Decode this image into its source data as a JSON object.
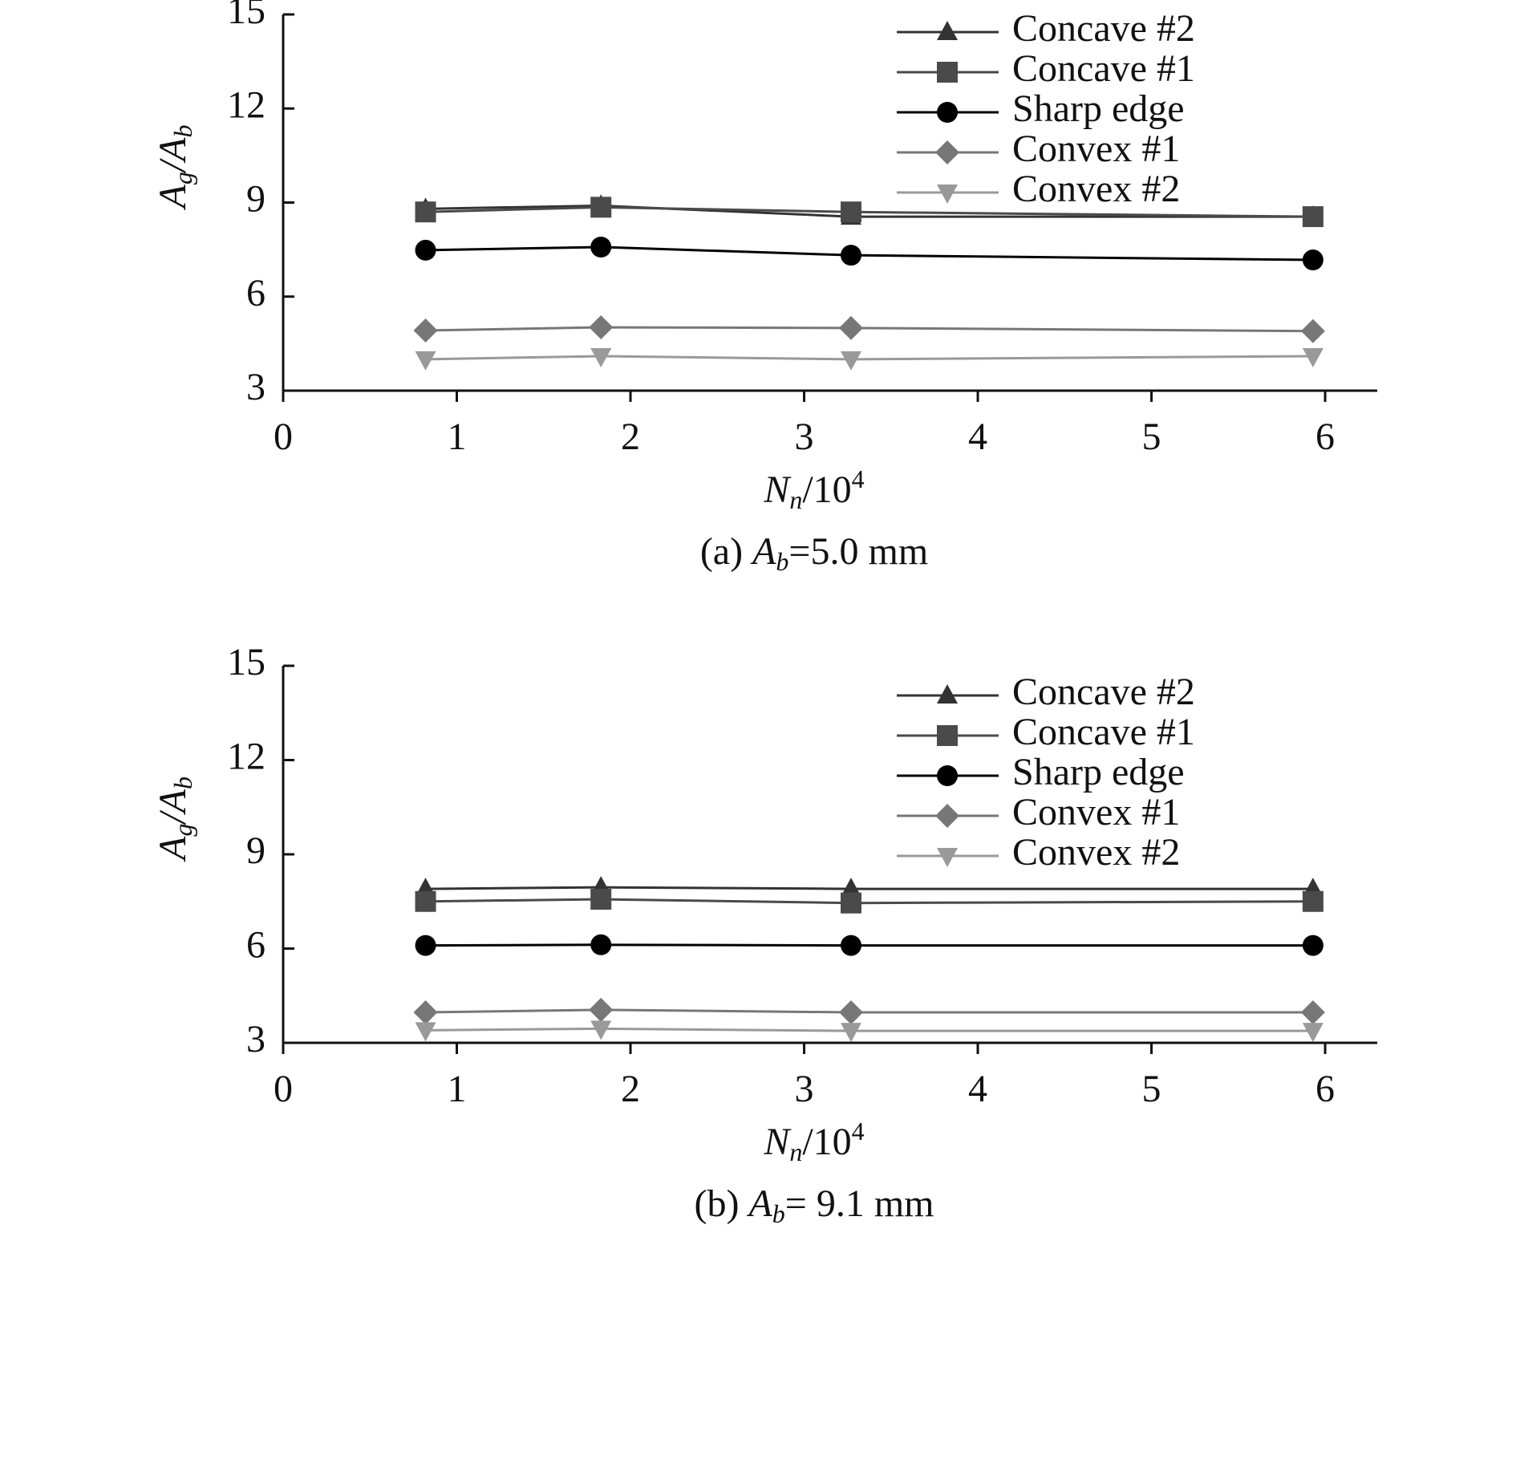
{
  "chart_data": [
    {
      "type": "line",
      "y_label": [
        "A",
        "g",
        "/A",
        "b"
      ],
      "x_label": [
        "N",
        "n",
        "/10",
        "4"
      ],
      "caption": [
        "(a) ",
        "A",
        "b",
        "=5.0 mm"
      ],
      "xlim": [
        0,
        6.3
      ],
      "xticks": [
        0,
        1,
        2,
        3,
        4,
        5,
        6
      ],
      "ylim": [
        3,
        15
      ],
      "yticks": [
        3,
        6,
        9,
        12,
        15
      ],
      "x": [
        0.82,
        1.83,
        3.27,
        5.93
      ],
      "series": [
        {
          "name": "Concave #2",
          "color": "#333333",
          "marker": "triangle-up",
          "values": [
            8.8,
            8.9,
            8.55,
            8.55
          ]
        },
        {
          "name": "Concave #1",
          "color": "#4a4a4a",
          "marker": "square",
          "values": [
            8.7,
            8.85,
            8.7,
            8.55
          ]
        },
        {
          "name": "Sharp edge",
          "color": "#000000",
          "marker": "circle",
          "values": [
            7.48,
            7.58,
            7.32,
            7.17
          ]
        },
        {
          "name": "Convex #1",
          "color": "#777777",
          "marker": "diamond",
          "values": [
            4.92,
            5.02,
            5.0,
            4.9
          ]
        },
        {
          "name": "Convex #2",
          "color": "#999999",
          "marker": "triangle-down",
          "values": [
            4.0,
            4.1,
            4.0,
            4.1
          ]
        }
      ]
    },
    {
      "type": "line",
      "y_label": [
        "A",
        "g",
        "/A",
        "b"
      ],
      "x_label": [
        "N",
        "n",
        "/10",
        "4"
      ],
      "caption": [
        "(b) ",
        "A",
        "b",
        "= 9.1 mm"
      ],
      "xlim": [
        0,
        6.3
      ],
      "xticks": [
        0,
        1,
        2,
        3,
        4,
        5,
        6
      ],
      "ylim": [
        3,
        15
      ],
      "yticks": [
        3,
        6,
        9,
        12,
        15
      ],
      "x": [
        0.82,
        1.83,
        3.27,
        5.93
      ],
      "series": [
        {
          "name": "Concave #2",
          "color": "#333333",
          "marker": "triangle-up",
          "values": [
            7.9,
            7.95,
            7.9,
            7.9
          ]
        },
        {
          "name": "Concave #1",
          "color": "#4a4a4a",
          "marker": "square",
          "values": [
            7.5,
            7.57,
            7.45,
            7.5
          ]
        },
        {
          "name": "Sharp edge",
          "color": "#000000",
          "marker": "circle",
          "values": [
            6.1,
            6.12,
            6.1,
            6.1
          ]
        },
        {
          "name": "Convex #1",
          "color": "#777777",
          "marker": "diamond",
          "values": [
            3.97,
            4.05,
            3.97,
            3.97
          ]
        },
        {
          "name": "Convex #2",
          "color": "#999999",
          "marker": "triangle-down",
          "values": [
            3.4,
            3.45,
            3.38,
            3.38
          ]
        }
      ]
    }
  ]
}
